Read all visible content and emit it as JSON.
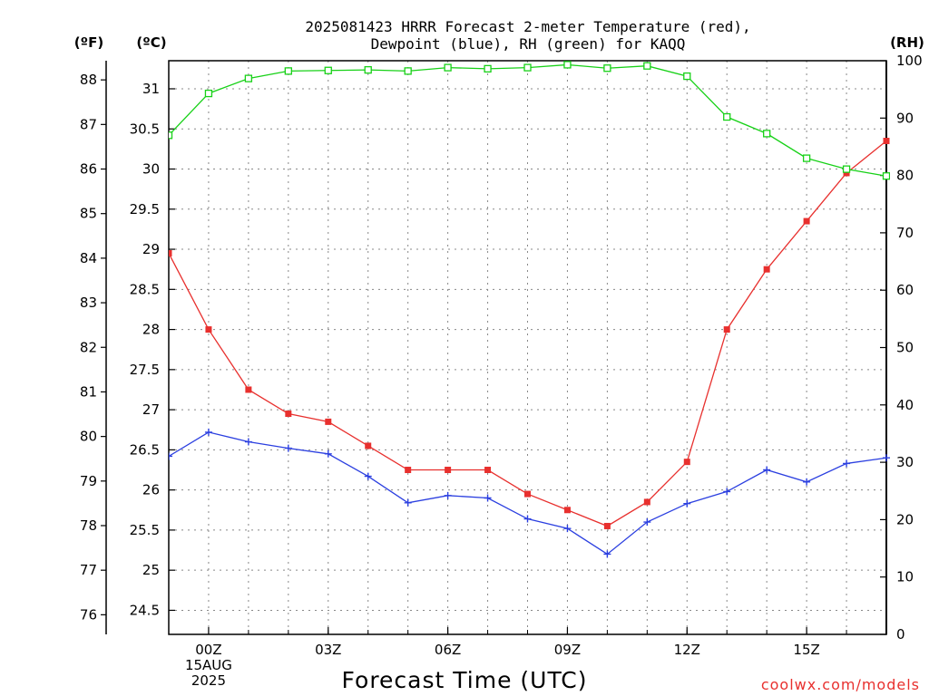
{
  "header": {
    "title_line1": "2025081423 HRRR Forecast 2-meter Temperature (red),",
    "title_line2": "Dewpoint (blue), RH (green) for KAQQ"
  },
  "units": {
    "fahrenheit": "(ºF)",
    "celsius": "(ºC)",
    "rh": "(RH)"
  },
  "credit": "coolwx.com/models",
  "colors": {
    "temperature": "#e8302e",
    "dewpoint": "#2b3fe0",
    "rh": "#17d117",
    "grid": "#888888"
  },
  "chart_data": {
    "type": "line",
    "xlabel": "Forecast Time (UTC)",
    "x_tick_labels": [
      {
        "hour": 0,
        "lines": [
          "00Z",
          "15AUG",
          "2025"
        ]
      },
      {
        "hour": 3,
        "lines": [
          "03Z"
        ]
      },
      {
        "hour": 6,
        "lines": [
          "06Z"
        ]
      },
      {
        "hour": 9,
        "lines": [
          "09Z"
        ]
      },
      {
        "hour": 12,
        "lines": [
          "12Z"
        ]
      },
      {
        "hour": 15,
        "lines": [
          "15Z"
        ]
      }
    ],
    "x": [
      -1,
      0,
      1,
      2,
      3,
      4,
      5,
      6,
      7,
      8,
      9,
      10,
      11,
      12,
      13,
      14,
      15,
      16,
      17
    ],
    "xlim": [
      -1,
      17
    ],
    "temp_axis_c": {
      "lim": [
        24.2,
        31.35
      ],
      "ticks": [
        24.5,
        25,
        25.5,
        26,
        26.5,
        27,
        27.5,
        28,
        28.5,
        29,
        29.5,
        30,
        30.5,
        31
      ],
      "tick_labels": [
        "24.5",
        "25",
        "25.5",
        "26",
        "26.5",
        "27",
        "27.5",
        "28",
        "28.5",
        "29",
        "29.5",
        "30",
        "30.5",
        "31"
      ]
    },
    "temp_axis_f": {
      "ticks": [
        76,
        77,
        78,
        79,
        80,
        81,
        82,
        83,
        84,
        85,
        86,
        87,
        88
      ],
      "tick_labels": [
        "76",
        "77",
        "78",
        "79",
        "80",
        "81",
        "82",
        "83",
        "84",
        "85",
        "86",
        "87",
        "88"
      ]
    },
    "rh_axis": {
      "lim": [
        0,
        100
      ],
      "ticks": [
        0,
        10,
        20,
        30,
        40,
        50,
        60,
        70,
        80,
        90,
        100
      ],
      "tick_labels": [
        "0",
        "10",
        "20",
        "30",
        "40",
        "50",
        "60",
        "70",
        "80",
        "90",
        "100"
      ]
    },
    "grid": true,
    "series": [
      {
        "name": "Temperature",
        "axis": "celsius",
        "marker": "filled-square",
        "values": [
          28.95,
          28.0,
          27.25,
          26.95,
          26.85,
          26.55,
          26.25,
          26.25,
          26.25,
          25.95,
          25.75,
          25.55,
          25.85,
          26.35,
          28.0,
          28.75,
          29.35,
          29.95,
          30.35
        ]
      },
      {
        "name": "Dewpoint",
        "axis": "celsius",
        "marker": "plus",
        "values": [
          26.42,
          26.72,
          26.6,
          26.52,
          26.45,
          26.17,
          25.84,
          25.93,
          25.9,
          25.64,
          25.52,
          25.2,
          25.6,
          25.83,
          25.98,
          26.25,
          26.1,
          26.33,
          26.4
        ]
      },
      {
        "name": "RH",
        "axis": "rh",
        "marker": "open-square",
        "values": [
          87,
          94.3,
          96.9,
          98.2,
          98.3,
          98.4,
          98.2,
          98.8,
          98.6,
          98.8,
          99.3,
          98.7,
          99.1,
          97.3,
          90.2,
          87.3,
          83,
          81.1,
          79.9
        ]
      }
    ]
  }
}
